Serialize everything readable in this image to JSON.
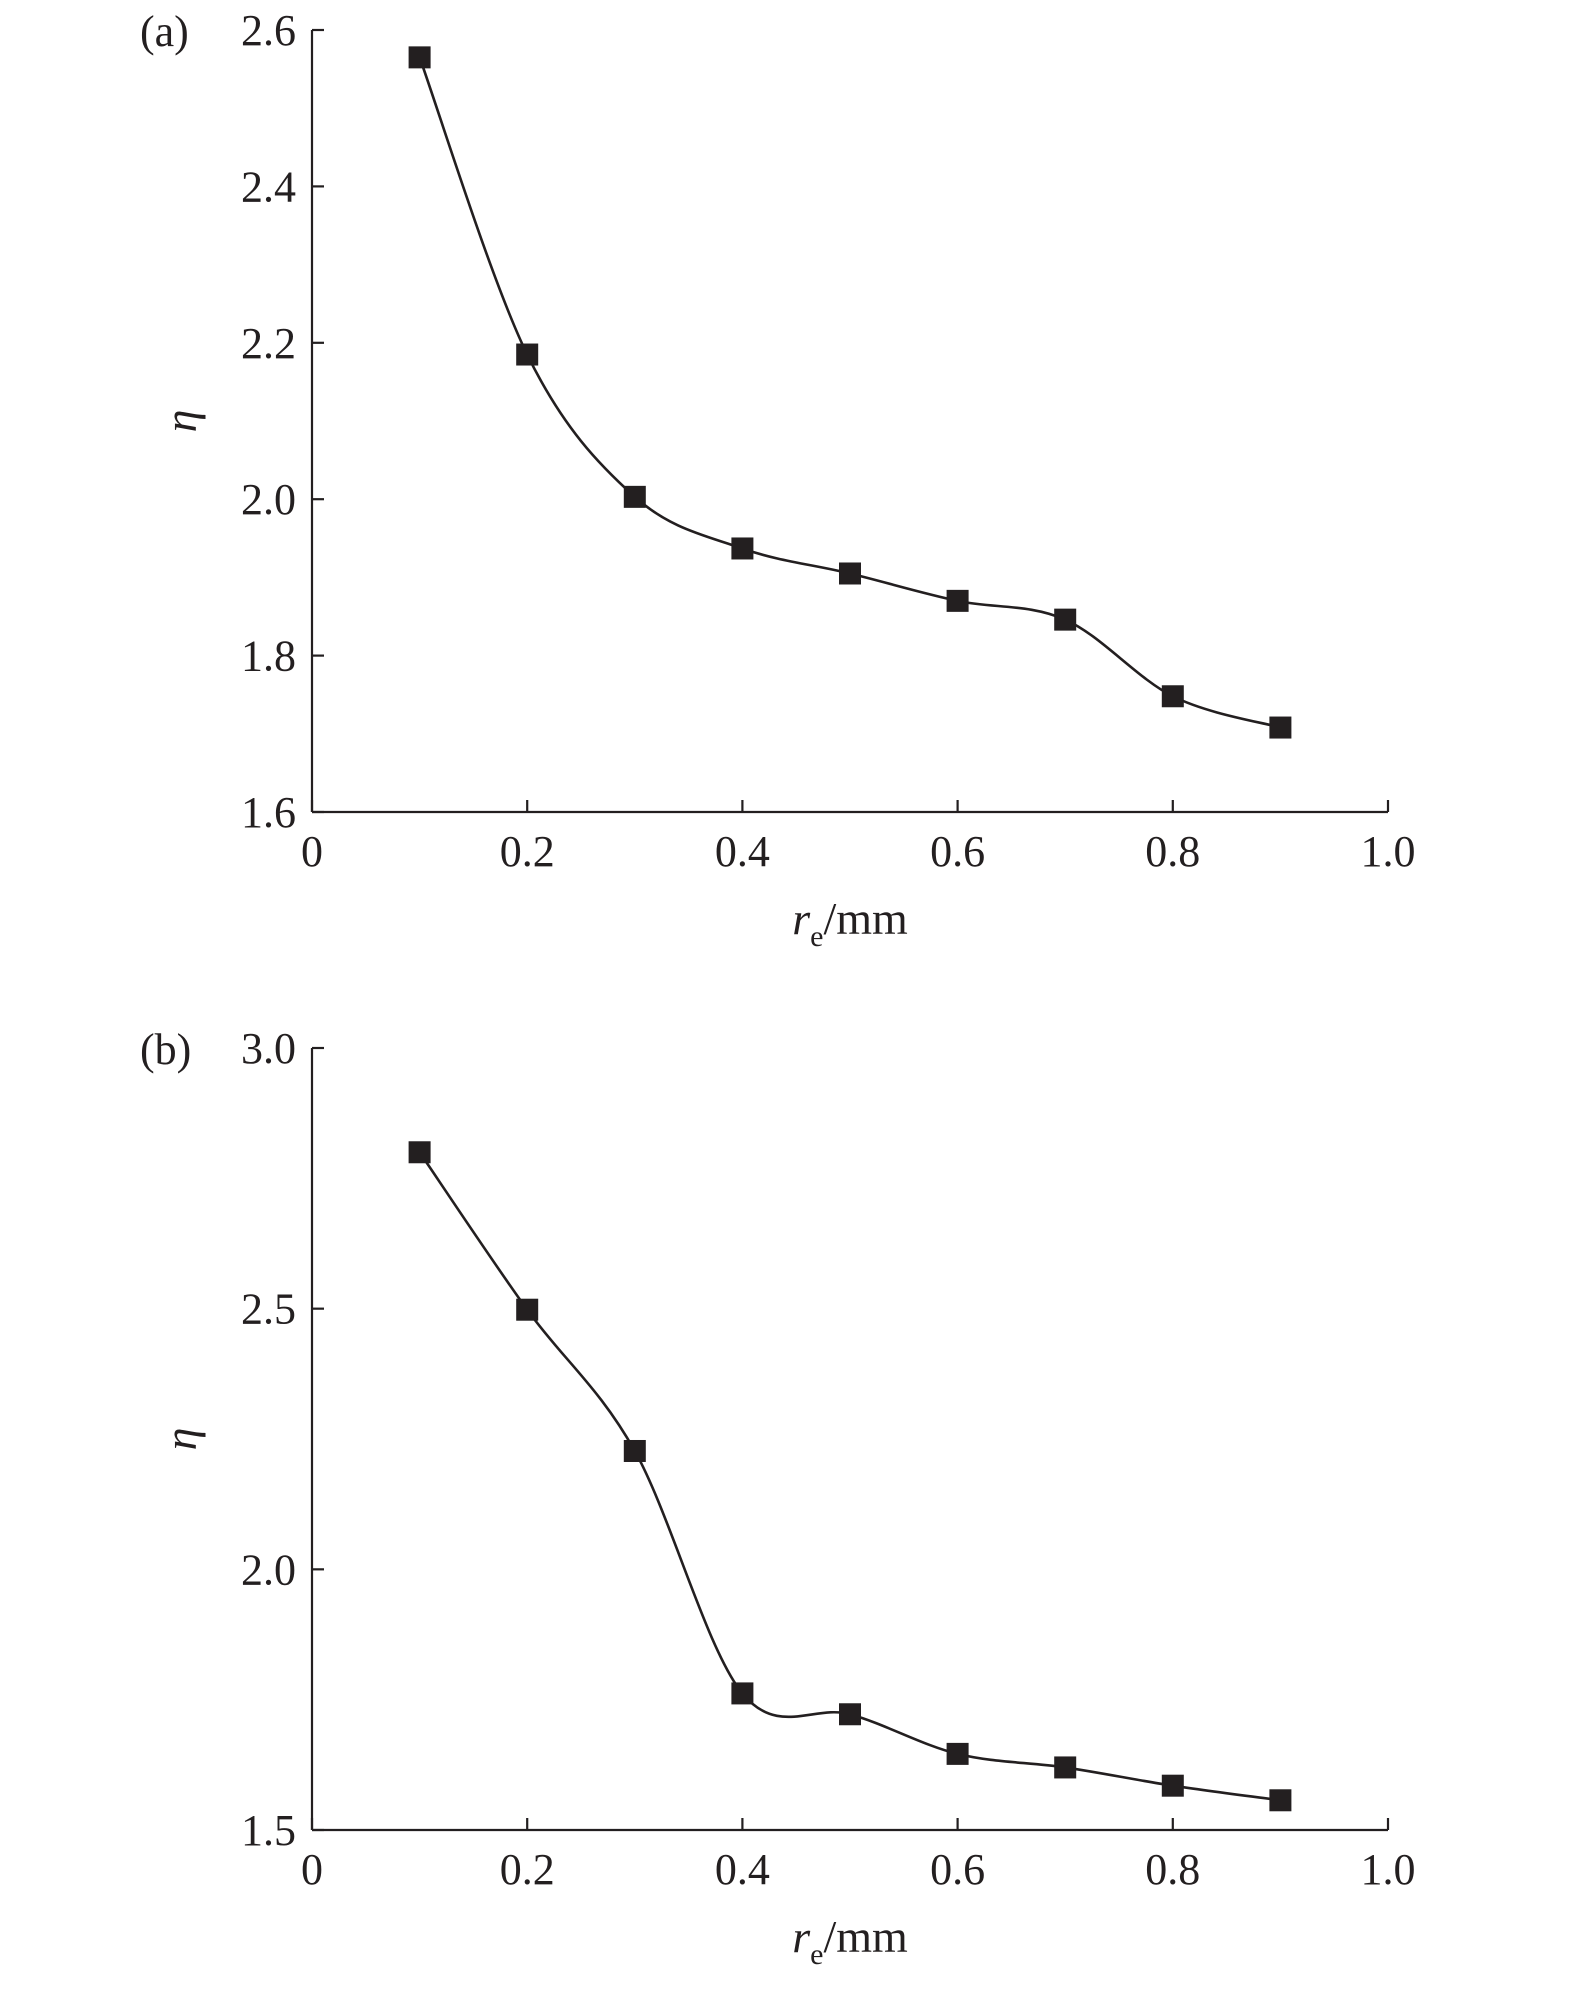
{
  "chart_data": [
    {
      "type": "line",
      "panel_label": "(a)",
      "xlabel_main": "r",
      "xlabel_sub": "e",
      "xlabel_unit": "/mm",
      "ylabel": "η",
      "xlim": [
        0,
        1.0
      ],
      "ylim": [
        1.6,
        2.6
      ],
      "xticks": [
        0,
        0.2,
        0.4,
        0.6,
        0.8,
        1.0
      ],
      "xtick_labels": [
        "0",
        "0.2",
        "0.4",
        "0.6",
        "0.8",
        "1.0"
      ],
      "yticks": [
        1.6,
        1.8,
        2.0,
        2.2,
        2.4,
        2.6
      ],
      "ytick_labels": [
        "1.6",
        "1.8",
        "2.0",
        "2.2",
        "2.4",
        "2.6"
      ],
      "marker": "filled-square",
      "line_style": "smooth",
      "series": [
        {
          "x": [
            0.1,
            0.2,
            0.3,
            0.4,
            0.5,
            0.6,
            0.7,
            0.8,
            0.9
          ],
          "y": [
            2.565,
            2.185,
            2.003,
            1.937,
            1.905,
            1.87,
            1.846,
            1.748,
            1.708
          ]
        }
      ]
    },
    {
      "type": "line",
      "panel_label": "(b)",
      "xlabel_main": "r",
      "xlabel_sub": "e",
      "xlabel_unit": "/mm",
      "ylabel": "η",
      "xlim": [
        0,
        1.0
      ],
      "ylim": [
        1.5,
        3.0
      ],
      "xticks": [
        0,
        0.2,
        0.4,
        0.6,
        0.8,
        1.0
      ],
      "xtick_labels": [
        "0",
        "0.2",
        "0.4",
        "0.6",
        "0.8",
        "1.0"
      ],
      "yticks": [
        1.5,
        2.0,
        2.5,
        3.0
      ],
      "ytick_labels": [
        "1.5",
        "2.0",
        "2.5",
        "3.0"
      ],
      "marker": "filled-square",
      "line_style": "smooth",
      "series": [
        {
          "x": [
            0.1,
            0.2,
            0.3,
            0.4,
            0.5,
            0.6,
            0.7,
            0.8,
            0.9
          ],
          "y": [
            2.8,
            2.498,
            2.227,
            1.762,
            1.722,
            1.646,
            1.62,
            1.585,
            1.557
          ]
        }
      ]
    }
  ]
}
